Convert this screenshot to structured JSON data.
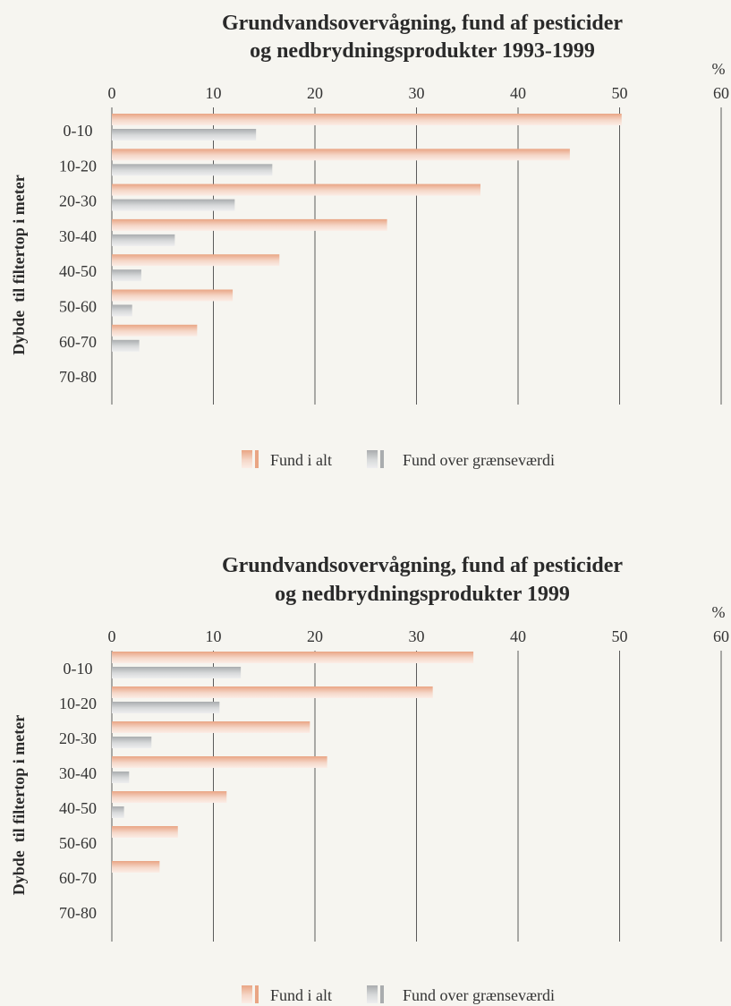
{
  "chart_data": [
    {
      "type": "bar",
      "orientation": "horizontal",
      "title_line1": "Grundvandsovervågning, fund af pesticider",
      "title_line2": "og nedbrydningsprodukter 1993-1999",
      "unit": "%",
      "ylabel": "Dybde  til filtertop i meter",
      "xlim": [
        0,
        60
      ],
      "xticks": [
        "0",
        "10",
        "20",
        "30",
        "40",
        "50",
        "60"
      ],
      "categories": [
        "0-10",
        "10-20",
        "20-30",
        "30-40",
        "40-50",
        "50-60",
        "60-70",
        "70-80"
      ],
      "series": [
        {
          "name": "Fund i alt",
          "color": "#e9a584",
          "values": [
            50.2,
            45.1,
            36.3,
            27.1,
            16.5,
            11.9,
            8.4,
            null
          ]
        },
        {
          "name": "Fund over grænseværdi",
          "color": "#a9acae",
          "values": [
            14.2,
            15.8,
            12.1,
            6.2,
            2.9,
            2.0,
            2.7,
            null
          ]
        }
      ],
      "grid": "vertical",
      "legend_position": "bottom"
    },
    {
      "type": "bar",
      "orientation": "horizontal",
      "title_line1": "Grundvandsovervågning, fund af pesticider",
      "title_line2": "og nedbrydningsprodukter 1999",
      "unit": "%",
      "ylabel": "Dybde  til filtertop i meter",
      "xlim": [
        0,
        60
      ],
      "xticks": [
        "0",
        "10",
        "20",
        "30",
        "40",
        "50",
        "60"
      ],
      "categories": [
        "0-10",
        "10-20",
        "20-30",
        "30-40",
        "40-50",
        "50-60",
        "60-70",
        "70-80"
      ],
      "series": [
        {
          "name": "Fund i alt",
          "color": "#e9a584",
          "values": [
            35.6,
            31.6,
            19.5,
            21.2,
            11.3,
            6.5,
            4.7,
            null
          ]
        },
        {
          "name": "Fund over grænseværdi",
          "color": "#a9acae",
          "values": [
            12.7,
            10.6,
            3.9,
            1.7,
            1.2,
            null,
            null,
            null
          ]
        }
      ],
      "grid": "vertical",
      "legend_position": "bottom"
    }
  ]
}
